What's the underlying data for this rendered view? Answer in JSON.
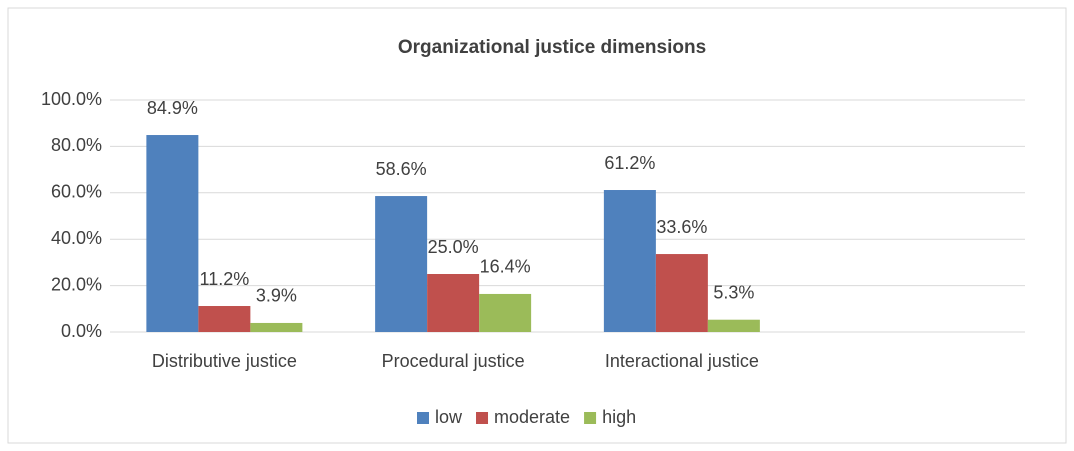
{
  "chart_data": {
    "type": "bar",
    "title": "Organizational justice dimensions",
    "categories": [
      "Distributive justice",
      "Procedural justice",
      "Interactional justice",
      null
    ],
    "series": [
      {
        "name": "low",
        "color": "#4f81bd",
        "values": [
          84.9,
          58.6,
          61.2,
          null
        ],
        "value_labels": [
          "84.9%",
          "58.6%",
          "61.2%",
          null
        ]
      },
      {
        "name": "moderate",
        "color": "#c0504d",
        "values": [
          11.2,
          25.0,
          33.6,
          null
        ],
        "value_labels": [
          "11.2%",
          "25.0%",
          "33.6%",
          null
        ]
      },
      {
        "name": "high",
        "color": "#9bbb59",
        "values": [
          3.9,
          16.4,
          5.3,
          null
        ],
        "value_labels": [
          "3.9%",
          "16.4%",
          "5.3%",
          null
        ]
      }
    ],
    "ylim": [
      0,
      100
    ],
    "yticks": [
      {
        "value": 0,
        "label": "0.0%"
      },
      {
        "value": 20,
        "label": "20.0%"
      },
      {
        "value": 40,
        "label": "40.0%"
      },
      {
        "value": 60,
        "label": "60.0%"
      },
      {
        "value": 80,
        "label": "80.0%"
      },
      {
        "value": 100,
        "label": "100.0%"
      }
    ],
    "grid": true,
    "legend": "bottom"
  }
}
